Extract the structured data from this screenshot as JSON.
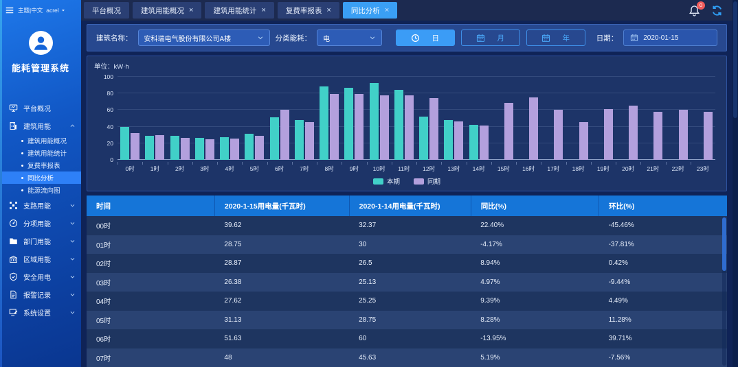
{
  "topbar": {
    "theme_lang": "主题|中文",
    "user": "acrel",
    "notification_badge": "0"
  },
  "tabs": [
    {
      "label": "平台概况",
      "closable": false,
      "active": false
    },
    {
      "label": "建筑用能概况",
      "closable": true,
      "active": false
    },
    {
      "label": "建筑用能统计",
      "closable": true,
      "active": false
    },
    {
      "label": "复费率报表",
      "closable": true,
      "active": false
    },
    {
      "label": "同比分析",
      "closable": true,
      "active": true
    }
  ],
  "sidebar": {
    "system_title": "能耗管理系统",
    "menu": [
      {
        "label": "平台概况",
        "icon": "monitor-icon",
        "has_children": false
      },
      {
        "label": "建筑用能",
        "icon": "building-icon",
        "has_children": true,
        "expanded": true,
        "children": [
          {
            "label": "建筑用能概况",
            "active": false
          },
          {
            "label": "建筑用能统计",
            "active": false
          },
          {
            "label": "复费率报表",
            "active": false
          },
          {
            "label": "同比分析",
            "active": true
          },
          {
            "label": "能源流向图",
            "active": false
          }
        ]
      },
      {
        "label": "支路用能",
        "icon": "branch-icon",
        "has_children": true
      },
      {
        "label": "分项用能",
        "icon": "gauge-icon",
        "has_children": true
      },
      {
        "label": "部门用能",
        "icon": "folder-icon",
        "has_children": true
      },
      {
        "label": "区域用能",
        "icon": "factory-icon",
        "has_children": true
      },
      {
        "label": "安全用电",
        "icon": "shield-icon",
        "has_children": true
      },
      {
        "label": "报警记录",
        "icon": "document-icon",
        "has_children": true
      },
      {
        "label": "系统设置",
        "icon": "settings-icon",
        "has_children": true
      }
    ]
  },
  "filters": {
    "building_label": "建筑名称：",
    "building_value": "安科瑞电气股份有限公司A楼",
    "energy_label": "分类能耗：",
    "energy_value": "电",
    "period_buttons": [
      {
        "label": "日",
        "icon": "clock-icon",
        "active": true
      },
      {
        "label": "月",
        "icon": "calendar-icon",
        "active": false
      },
      {
        "label": "年",
        "icon": "calendar-icon",
        "active": false
      }
    ],
    "date_label": "日期：",
    "date_value": "2020-01-15"
  },
  "chart_data": {
    "type": "bar",
    "title": "",
    "unit_label": "单位：kW·h",
    "categories": [
      "0时",
      "1时",
      "2时",
      "3时",
      "4时",
      "5时",
      "6时",
      "7时",
      "8时",
      "9时",
      "10时",
      "11时",
      "12时",
      "13时",
      "14时",
      "15时",
      "16时",
      "17时",
      "18时",
      "19时",
      "20时",
      "21时",
      "22时",
      "23时"
    ],
    "series": [
      {
        "name": "本期",
        "color": "#41d0c8",
        "values": [
          39.62,
          28.75,
          28.87,
          26.38,
          27.62,
          31.13,
          51.63,
          48,
          88.5,
          86.5,
          92.5,
          84,
          52,
          48,
          42,
          null,
          null,
          null,
          null,
          null,
          null,
          null,
          null,
          null
        ]
      },
      {
        "name": "同期",
        "color": "#b3a0dd",
        "values": [
          32.37,
          30,
          26.5,
          25.13,
          25.25,
          28.75,
          60,
          45.63,
          79.5,
          79,
          78,
          78,
          74.5,
          46,
          41,
          68.5,
          75.5,
          60,
          45.5,
          61.5,
          65,
          57.5,
          60,
          57.5
        ]
      }
    ],
    "ylim": [
      0,
      100
    ],
    "yticks": [
      0,
      20,
      40,
      60,
      80,
      100
    ],
    "legend_position": "bottom",
    "grid": true
  },
  "table": {
    "headers": [
      "时间",
      "2020-1-15用电量(千瓦时)",
      "2020-1-14用电量(千瓦时)",
      "同比(%)",
      "环比(%)"
    ],
    "col_widths": [
      "20%",
      "21%",
      "19%",
      "20%",
      "20%"
    ],
    "rows": [
      [
        "00时",
        "39.62",
        "32.37",
        "22.40%",
        "-45.46%"
      ],
      [
        "01时",
        "28.75",
        "30",
        "-4.17%",
        "-37.81%"
      ],
      [
        "02时",
        "28.87",
        "26.5",
        "8.94%",
        "0.42%"
      ],
      [
        "03时",
        "26.38",
        "25.13",
        "4.97%",
        "-9.44%"
      ],
      [
        "04时",
        "27.62",
        "25.25",
        "9.39%",
        "4.49%"
      ],
      [
        "05时",
        "31.13",
        "28.75",
        "8.28%",
        "11.28%"
      ],
      [
        "06时",
        "51.63",
        "60",
        "-13.95%",
        "39.71%"
      ],
      [
        "07时",
        "48",
        "45.63",
        "5.19%",
        "-7.56%"
      ]
    ]
  }
}
